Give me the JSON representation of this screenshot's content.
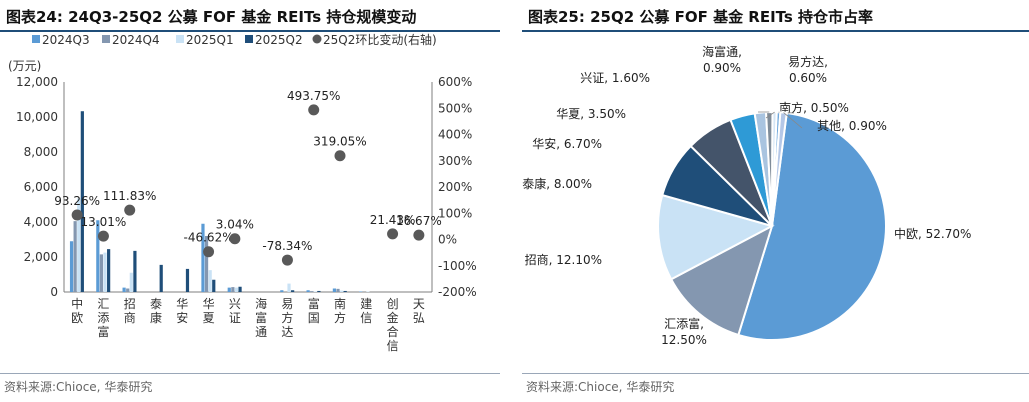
{
  "left": {
    "title": "图表24:  24Q3-25Q2 公募 FOF 基金 REITs 持仓规模变动",
    "source": "资料来源:Chioce, 华泰研究",
    "chart_data": {
      "type": "bar",
      "unit_label": "(万元)",
      "categories": [
        "中欧",
        "汇添富",
        "招商",
        "泰康",
        "华安",
        "华夏",
        "兴证",
        "海富通",
        "易方达",
        "富国",
        "南方",
        "建信",
        "创金合信",
        "天弘"
      ],
      "series": [
        {
          "name": "2024Q3",
          "color": "#5b9bd5",
          "values": [
            2900,
            4100,
            250,
            0,
            0,
            3900,
            250,
            0,
            100,
            100,
            200,
            30,
            0,
            0
          ]
        },
        {
          "name": "2024Q4",
          "color": "#8497b0",
          "values": [
            4050,
            2150,
            200,
            0,
            0,
            3200,
            280,
            0,
            0,
            50,
            180,
            0,
            0,
            0
          ]
        },
        {
          "name": "2025Q1",
          "color": "#c9e2f5",
          "values": [
            5350,
            2250,
            1100,
            0,
            0,
            1250,
            250,
            0,
            480,
            30,
            80,
            30,
            0,
            0
          ]
        },
        {
          "name": "2025Q2",
          "color": "#1f4e79",
          "values": [
            10330,
            2450,
            2350,
            1550,
            1320,
            700,
            300,
            0,
            100,
            60,
            60,
            0,
            0,
            0
          ]
        }
      ],
      "line_series": {
        "name": "25Q2环比变动(右轴)",
        "color": "#595959",
        "values": [
          93.26,
          13.01,
          111.83,
          null,
          null,
          -46.62,
          3.04,
          null,
          -78.34,
          493.75,
          319.05,
          null,
          21.43,
          16.67
        ],
        "labels": [
          "93.26%",
          "13.01%",
          "111.83%",
          "",
          "",
          "-46.62%",
          "3.04%",
          "",
          "-78.34%",
          "493.75%",
          "319.05%",
          "",
          "21.43%",
          "16.67%"
        ]
      },
      "ylim": [
        0,
        12000
      ],
      "y_ticks": [
        "0",
        "2,000",
        "4,000",
        "6,000",
        "8,000",
        "10,000",
        "12,000"
      ],
      "y2lim": [
        -200,
        600
      ],
      "y2_ticks": [
        "-200%",
        "-100%",
        "0%",
        "100%",
        "200%",
        "300%",
        "400%",
        "500%",
        "600%"
      ],
      "legend_placement": "top"
    }
  },
  "right": {
    "title": "图表25:  25Q2 公募 FOF 基金 REITs 持仓市占率",
    "source": "资料来源:Chioce, 华泰研究",
    "chart_data": {
      "type": "pie",
      "slices": [
        {
          "label": "中欧, 52.70%",
          "value": 52.7,
          "color": "#5b9bd5"
        },
        {
          "label": "汇添富,\n12.50%",
          "value": 12.5,
          "color": "#8497b0"
        },
        {
          "label": "招商, 12.10%",
          "value": 12.1,
          "color": "#c9e2f5"
        },
        {
          "label": "泰康, 8.00%",
          "value": 8.0,
          "color": "#1f4e79"
        },
        {
          "label": "华安, 6.70%",
          "value": 6.7,
          "color": "#44546a"
        },
        {
          "label": "华夏, 3.50%",
          "value": 3.5,
          "color": "#2e9ad6"
        },
        {
          "label": "兴证, 1.60%",
          "value": 1.6,
          "color": "#a9c4e0"
        },
        {
          "label": "海富通,\n0.90%",
          "value": 0.9,
          "color": "#7f8c99"
        },
        {
          "label": "易方达,\n0.60%",
          "value": 0.6,
          "color": "#d6e6f5"
        },
        {
          "label": "南方, 0.50%",
          "value": 0.5,
          "color": "#6fa8dc"
        },
        {
          "label": "其他, 0.90%",
          "value": 0.9,
          "color": "#b4c7e7"
        }
      ]
    }
  }
}
